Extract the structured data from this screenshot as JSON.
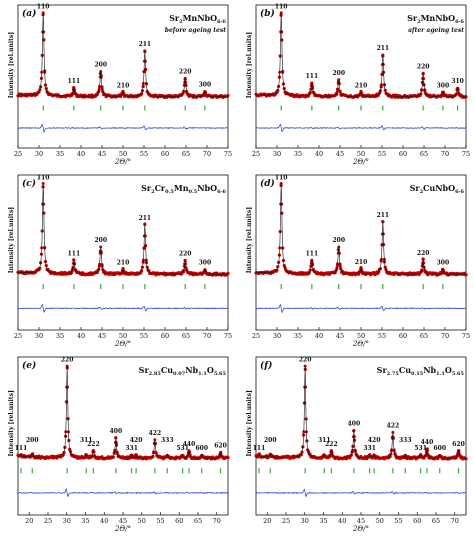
{
  "colors": {
    "observed": "#c00000",
    "calculated": "#111111",
    "difference": "#1f3fd6",
    "bragg": "#23a323"
  },
  "chart_data": [
    {
      "type": "line",
      "panel": "(a)",
      "compound": [
        "Sr",
        "2",
        "MnNbO",
        "6-δ"
      ],
      "note": "before ageing test",
      "xlabel": "2Θ/°",
      "ylabel": "Intensity [rel.units]",
      "xlim": [
        25,
        75
      ],
      "xticks": [
        25,
        30,
        35,
        40,
        45,
        50,
        55,
        60,
        65,
        70,
        75
      ],
      "peaks": [
        {
          "label": "110",
          "x": 31.0,
          "h": 1.0
        },
        {
          "label": "111",
          "x": 38.3,
          "h": 0.1
        },
        {
          "label": "200",
          "x": 44.7,
          "h": 0.3
        },
        {
          "label": "210",
          "x": 50.0,
          "h": 0.05
        },
        {
          "label": "211",
          "x": 55.2,
          "h": 0.55
        },
        {
          "label": "220",
          "x": 64.8,
          "h": 0.22
        },
        {
          "label": "300",
          "x": 69.5,
          "h": 0.06
        }
      ],
      "ticks": [
        31.0,
        38.3,
        44.7,
        50.0,
        55.2,
        64.8,
        69.5
      ]
    },
    {
      "type": "line",
      "panel": "(b)",
      "compound": [
        "Sr",
        "2",
        "MnNbO",
        "6-δ"
      ],
      "note": "after ageing test",
      "xlabel": "2Θ/°",
      "ylabel": "Intensity [rel.units]",
      "xlim": [
        25,
        75
      ],
      "xticks": [
        25,
        30,
        35,
        40,
        45,
        50,
        55,
        60,
        65,
        70,
        75
      ],
      "peaks": [
        {
          "label": "110",
          "x": 31.0,
          "h": 1.0
        },
        {
          "label": "111",
          "x": 38.3,
          "h": 0.16
        },
        {
          "label": "200",
          "x": 44.7,
          "h": 0.2
        },
        {
          "label": "210",
          "x": 50.0,
          "h": 0.05
        },
        {
          "label": "211",
          "x": 55.2,
          "h": 0.5
        },
        {
          "label": "220",
          "x": 64.8,
          "h": 0.28
        },
        {
          "label": "300",
          "x": 69.5,
          "h": 0.05
        },
        {
          "label": "310",
          "x": 73.0,
          "h": 0.1
        }
      ],
      "ticks": [
        31.0,
        38.3,
        44.7,
        50.0,
        55.2,
        64.8,
        69.5,
        73.0
      ]
    },
    {
      "type": "line",
      "panel": "(c)",
      "compound": [
        "Sr",
        "2",
        "Cr",
        "0.5",
        "Mn",
        "0.5",
        "NbO",
        "6-δ"
      ],
      "xlabel": "2Θ/°",
      "ylabel": "Intensity [rel.units]",
      "xlim": [
        25,
        75
      ],
      "xticks": [
        25,
        30,
        35,
        40,
        45,
        50,
        55,
        60,
        65,
        70,
        75
      ],
      "peaks": [
        {
          "label": "110",
          "x": 31.0,
          "h": 1.0
        },
        {
          "label": "111",
          "x": 38.3,
          "h": 0.15
        },
        {
          "label": "200",
          "x": 44.7,
          "h": 0.3
        },
        {
          "label": "210",
          "x": 50.0,
          "h": 0.05
        },
        {
          "label": "211",
          "x": 55.2,
          "h": 0.55
        },
        {
          "label": "220",
          "x": 64.8,
          "h": 0.15
        },
        {
          "label": "300",
          "x": 69.5,
          "h": 0.05
        }
      ],
      "ticks": [
        31.0,
        38.3,
        44.7,
        50.0,
        55.2,
        64.8,
        69.5
      ]
    },
    {
      "type": "line",
      "panel": "(d)",
      "compound": [
        "Sr",
        "2",
        "CuNbO",
        "6-δ"
      ],
      "xlabel": "2Θ/°",
      "ylabel": "Intensity [rel.units]",
      "xlim": [
        25,
        75
      ],
      "xticks": [
        25,
        30,
        35,
        40,
        45,
        50,
        55,
        60,
        65,
        70,
        75
      ],
      "peaks": [
        {
          "label": "110",
          "x": 31.0,
          "h": 1.0
        },
        {
          "label": "111",
          "x": 38.3,
          "h": 0.15
        },
        {
          "label": "200",
          "x": 44.7,
          "h": 0.3
        },
        {
          "label": "210",
          "x": 50.0,
          "h": 0.06
        },
        {
          "label": "211",
          "x": 55.2,
          "h": 0.58
        },
        {
          "label": "220",
          "x": 64.8,
          "h": 0.16
        },
        {
          "label": "300",
          "x": 69.5,
          "h": 0.05
        }
      ],
      "ticks": [
        31.0,
        38.3,
        44.7,
        50.0,
        55.2,
        64.8,
        69.5
      ]
    },
    {
      "type": "line",
      "panel": "(e)",
      "compound": [
        "Sr",
        "2.85",
        "Cu",
        "0.07",
        "Nb",
        "1.1",
        "O",
        "5.65"
      ],
      "xlabel": "2Θ/°",
      "ylabel": "Intensity [rel.units]",
      "xlim": [
        17,
        73
      ],
      "xticks": [
        20,
        25,
        30,
        35,
        40,
        45,
        50,
        55,
        60,
        65,
        70
      ],
      "peaks": [
        {
          "label": "111",
          "x": 17.8,
          "h": 0.02
        },
        {
          "label": "200",
          "x": 20.8,
          "h": 0.03
        },
        {
          "label": "220",
          "x": 30.1,
          "h": 1.0
        },
        {
          "label": "311",
          "x": 35.2,
          "h": 0.03
        },
        {
          "label": "222",
          "x": 37.1,
          "h": 0.08
        },
        {
          "label": "400",
          "x": 43.1,
          "h": 0.22
        },
        {
          "label": "331",
          "x": 47.3,
          "h": 0.03
        },
        {
          "label": "420",
          "x": 48.5,
          "h": 0.03
        },
        {
          "label": "422",
          "x": 53.5,
          "h": 0.2
        },
        {
          "label": "333",
          "x": 56.8,
          "h": 0.03
        },
        {
          "label": "531",
          "x": 60.9,
          "h": 0.03
        },
        {
          "label": "440",
          "x": 62.6,
          "h": 0.08
        },
        {
          "label": "600",
          "x": 66.0,
          "h": 0.03
        },
        {
          "label": "620",
          "x": 71.0,
          "h": 0.06
        }
      ],
      "ticks": [
        17.8,
        20.8,
        30.1,
        35.2,
        37.1,
        43.1,
        47.3,
        48.5,
        53.5,
        56.8,
        60.9,
        62.6,
        66.0,
        71.0
      ]
    },
    {
      "type": "line",
      "panel": "(f)",
      "compound": [
        "Sr",
        "2.75",
        "Cu",
        "0.15",
        "Nb",
        "1.1",
        "O",
        "5.65"
      ],
      "xlabel": "2Θ/°",
      "ylabel": "Intensity [rel.units]",
      "xlim": [
        17,
        73
      ],
      "xticks": [
        20,
        25,
        30,
        35,
        40,
        45,
        50,
        55,
        60,
        65,
        70
      ],
      "peaks": [
        {
          "label": "111",
          "x": 17.8,
          "h": 0.02
        },
        {
          "label": "200",
          "x": 20.8,
          "h": 0.03
        },
        {
          "label": "220",
          "x": 30.1,
          "h": 1.0
        },
        {
          "label": "311",
          "x": 35.2,
          "h": 0.03
        },
        {
          "label": "222",
          "x": 37.1,
          "h": 0.08
        },
        {
          "label": "400",
          "x": 43.1,
          "h": 0.3
        },
        {
          "label": "331",
          "x": 47.3,
          "h": 0.03
        },
        {
          "label": "420",
          "x": 48.5,
          "h": 0.03
        },
        {
          "label": "422",
          "x": 53.5,
          "h": 0.28
        },
        {
          "label": "333",
          "x": 56.8,
          "h": 0.03
        },
        {
          "label": "531",
          "x": 60.9,
          "h": 0.03
        },
        {
          "label": "440",
          "x": 62.6,
          "h": 0.1
        },
        {
          "label": "600",
          "x": 66.0,
          "h": 0.03
        },
        {
          "label": "620",
          "x": 71.0,
          "h": 0.08
        }
      ],
      "ticks": [
        17.8,
        20.8,
        30.1,
        35.2,
        37.1,
        43.1,
        47.3,
        48.5,
        53.5,
        56.8,
        60.9,
        62.6,
        66.0,
        71.0
      ]
    }
  ]
}
